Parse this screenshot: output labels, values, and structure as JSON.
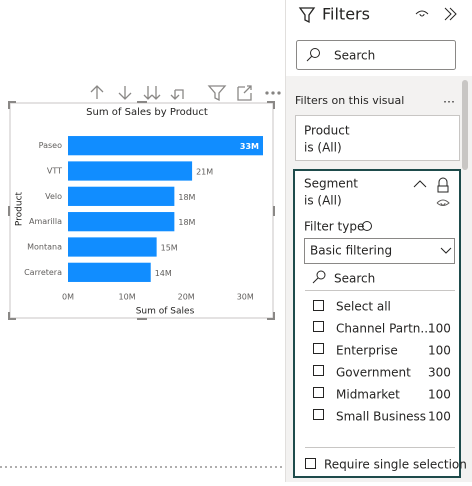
{
  "chart_data": {
    "type": "hbar",
    "title": "Sum of Sales by Product",
    "categories": [
      "Paseo",
      "VTT",
      "Velo",
      "Amarilla",
      "Montana",
      "Carretera"
    ],
    "values": [
      33000000,
      21000000,
      18000000,
      18000000,
      15000000,
      14000000
    ],
    "value_labels": [
      "33M",
      "21M",
      "18M",
      "18M",
      "15M",
      "14M"
    ],
    "color": "#118dff",
    "xlim": [
      0,
      33000000
    ],
    "xticks": [
      {
        "value": 0,
        "label": "0M"
      },
      {
        "value": 10000000,
        "label": "10M"
      },
      {
        "value": 20000000,
        "label": "20M"
      },
      {
        "value": 30000000,
        "label": "30M"
      }
    ],
    "xlabel": "Sum of Sales",
    "ylabel": "Product",
    "grid": false
  },
  "filters": {
    "title": "Filters",
    "search": "Search",
    "section": "Filters on this visual",
    "cards": [
      {
        "field": "Product",
        "state": "is (All)"
      },
      {
        "field": "Segment",
        "state": "is (All)"
      }
    ],
    "filter_type_label": "Filter type",
    "filter_type": "Basic filtering",
    "list_search": "Search",
    "select_all": "Select all",
    "items": [
      {
        "label": "Channel Partn...",
        "count": 100
      },
      {
        "label": "Enterprise",
        "count": 100
      },
      {
        "label": "Government",
        "count": 300
      },
      {
        "label": "Midmarket",
        "count": 100
      },
      {
        "label": "Small Business",
        "count": 100
      }
    ],
    "require_single": "Require single selection"
  }
}
